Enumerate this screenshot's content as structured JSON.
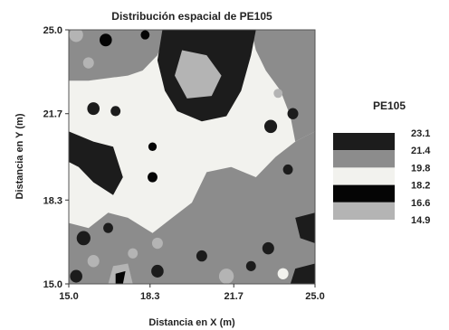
{
  "chart_data": {
    "type": "heatmap",
    "title": "Distribución espacial de PE105",
    "xlabel": "Distancia en X (m)",
    "ylabel": "Distancia en Y (m)",
    "xlim": [
      15.0,
      25.0
    ],
    "ylim": [
      15.0,
      25.0
    ],
    "x_ticks": [
      "15.0",
      "18.3",
      "21.7",
      "25.0"
    ],
    "y_ticks": [
      "15.0",
      "18.3",
      "21.7",
      "25.0"
    ],
    "legend": {
      "title": "PE105",
      "placement": "right",
      "levels": [
        "23.1",
        "21.4",
        "19.8",
        "18.2",
        "16.6",
        "14.9"
      ],
      "bands": [
        {
          "from": "21.4",
          "to": "23.1",
          "color": "#1c1c1c"
        },
        {
          "from": "19.8",
          "to": "21.4",
          "color": "#8c8c8c"
        },
        {
          "from": "18.2",
          "to": "19.8",
          "color": "#f2f2ee"
        },
        {
          "from": "16.6",
          "to": "18.2",
          "color": "#050505"
        },
        {
          "from": "14.9",
          "to": "16.6",
          "color": "#b4b4b4"
        }
      ]
    },
    "regions": [
      {
        "shape": "rect",
        "x": [
          15.0,
          25.0
        ],
        "y": [
          15.0,
          25.0
        ],
        "band": 2
      },
      {
        "shape": "poly",
        "band": 1,
        "points": [
          [
            15.0,
            25.0
          ],
          [
            19.0,
            25.0
          ],
          [
            18.6,
            24.0
          ],
          [
            18.0,
            23.4
          ],
          [
            17.4,
            23.2
          ],
          [
            15.8,
            23.0
          ],
          [
            15.0,
            23.0
          ]
        ]
      },
      {
        "shape": "poly",
        "band": 1,
        "points": [
          [
            22.4,
            25.0
          ],
          [
            25.0,
            25.0
          ],
          [
            25.0,
            21.0
          ],
          [
            24.2,
            20.6
          ],
          [
            24.0,
            21.6
          ],
          [
            23.6,
            22.6
          ],
          [
            23.0,
            23.4
          ],
          [
            22.6,
            24.2
          ]
        ]
      },
      {
        "shape": "poly",
        "band": 1,
        "points": [
          [
            15.0,
            17.4
          ],
          [
            15.8,
            17.2
          ],
          [
            16.6,
            17.8
          ],
          [
            17.4,
            17.6
          ],
          [
            18.4,
            17.0
          ],
          [
            19.2,
            17.6
          ],
          [
            20.0,
            18.2
          ],
          [
            20.6,
            19.4
          ],
          [
            21.6,
            19.6
          ],
          [
            22.6,
            19.2
          ],
          [
            23.4,
            20.0
          ],
          [
            24.2,
            20.6
          ],
          [
            25.0,
            21.0
          ],
          [
            25.0,
            15.0
          ],
          [
            15.0,
            15.0
          ]
        ]
      },
      {
        "shape": "poly",
        "band": 0,
        "points": [
          [
            18.8,
            25.0
          ],
          [
            22.6,
            25.0
          ],
          [
            22.4,
            24.0
          ],
          [
            22.0,
            22.6
          ],
          [
            21.4,
            21.6
          ],
          [
            20.4,
            21.4
          ],
          [
            19.4,
            21.8
          ],
          [
            18.9,
            22.6
          ],
          [
            18.6,
            23.8
          ]
        ]
      },
      {
        "shape": "poly",
        "band": 4,
        "points": [
          [
            19.6,
            24.2
          ],
          [
            20.6,
            24.0
          ],
          [
            21.2,
            23.2
          ],
          [
            20.8,
            22.4
          ],
          [
            19.8,
            22.3
          ],
          [
            19.3,
            23.2
          ]
        ]
      },
      {
        "shape": "poly",
        "band": 0,
        "points": [
          [
            15.0,
            21.0
          ],
          [
            16.0,
            20.6
          ],
          [
            16.8,
            20.4
          ],
          [
            17.2,
            19.2
          ],
          [
            16.8,
            18.5
          ],
          [
            16.0,
            19.0
          ],
          [
            15.4,
            19.6
          ],
          [
            15.0,
            19.8
          ]
        ]
      },
      {
        "shape": "poly",
        "band": 0,
        "points": [
          [
            24.2,
            17.6
          ],
          [
            25.0,
            17.8
          ],
          [
            25.0,
            16.6
          ],
          [
            24.4,
            16.8
          ]
        ]
      },
      {
        "shape": "poly",
        "band": 0,
        "points": [
          [
            24.2,
            15.6
          ],
          [
            25.0,
            15.8
          ],
          [
            25.0,
            15.0
          ],
          [
            24.0,
            15.0
          ]
        ]
      },
      {
        "shape": "poly",
        "band": 4,
        "points": [
          [
            16.6,
            15.0
          ],
          [
            17.6,
            15.0
          ],
          [
            17.4,
            15.8
          ],
          [
            16.8,
            15.7
          ]
        ]
      },
      {
        "shape": "poly",
        "band": 3,
        "points": [
          [
            16.9,
            15.4
          ],
          [
            17.3,
            15.5
          ],
          [
            17.2,
            15.0
          ],
          [
            16.9,
            15.0
          ]
        ]
      },
      {
        "shape": "blob",
        "x": 16.0,
        "y": 21.9,
        "r": 0.25,
        "band": 0
      },
      {
        "shape": "blob",
        "x": 16.9,
        "y": 21.8,
        "r": 0.2,
        "band": 0
      },
      {
        "shape": "blob",
        "x": 15.3,
        "y": 24.8,
        "r": 0.28,
        "band": 4
      },
      {
        "shape": "blob",
        "x": 15.8,
        "y": 23.7,
        "r": 0.22,
        "band": 4
      },
      {
        "shape": "blob",
        "x": 16.5,
        "y": 24.6,
        "r": 0.25,
        "band": 3
      },
      {
        "shape": "blob",
        "x": 18.1,
        "y": 24.8,
        "r": 0.18,
        "band": 3
      },
      {
        "shape": "blob",
        "x": 23.2,
        "y": 21.2,
        "r": 0.26,
        "band": 0
      },
      {
        "shape": "blob",
        "x": 24.1,
        "y": 21.7,
        "r": 0.22,
        "band": 0
      },
      {
        "shape": "blob",
        "x": 23.5,
        "y": 22.5,
        "r": 0.18,
        "band": 4
      },
      {
        "shape": "blob",
        "x": 18.4,
        "y": 20.4,
        "r": 0.17,
        "band": 3
      },
      {
        "shape": "blob",
        "x": 18.4,
        "y": 19.2,
        "r": 0.2,
        "band": 3
      },
      {
        "shape": "blob",
        "x": 23.9,
        "y": 19.5,
        "r": 0.2,
        "band": 0
      },
      {
        "shape": "blob",
        "x": 15.6,
        "y": 16.8,
        "r": 0.28,
        "band": 0
      },
      {
        "shape": "blob",
        "x": 16.6,
        "y": 17.2,
        "r": 0.2,
        "band": 0
      },
      {
        "shape": "blob",
        "x": 18.6,
        "y": 16.6,
        "r": 0.22,
        "band": 4
      },
      {
        "shape": "blob",
        "x": 16.0,
        "y": 15.9,
        "r": 0.24,
        "band": 4
      },
      {
        "shape": "blob",
        "x": 17.6,
        "y": 16.2,
        "r": 0.2,
        "band": 4
      },
      {
        "shape": "blob",
        "x": 18.6,
        "y": 15.5,
        "r": 0.25,
        "band": 0
      },
      {
        "shape": "blob",
        "x": 20.4,
        "y": 16.1,
        "r": 0.22,
        "band": 0
      },
      {
        "shape": "blob",
        "x": 23.1,
        "y": 16.4,
        "r": 0.24,
        "band": 0
      },
      {
        "shape": "blob",
        "x": 22.4,
        "y": 15.7,
        "r": 0.2,
        "band": 0
      },
      {
        "shape": "blob",
        "x": 15.3,
        "y": 15.3,
        "r": 0.25,
        "band": 0
      },
      {
        "shape": "blob",
        "x": 21.4,
        "y": 15.3,
        "r": 0.3,
        "band": 4
      },
      {
        "shape": "blob",
        "x": 23.7,
        "y": 15.4,
        "r": 0.22,
        "band": 2
      }
    ]
  }
}
